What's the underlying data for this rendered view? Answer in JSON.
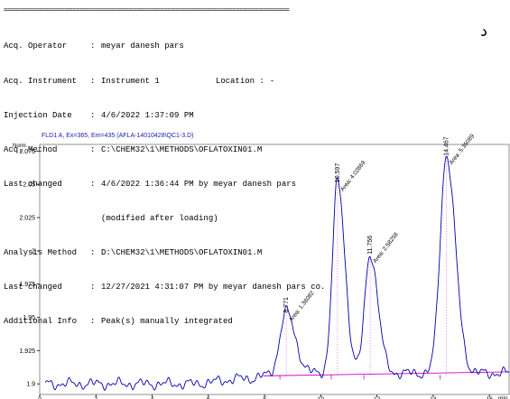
{
  "separator": "===========================================================================",
  "header": {
    "rows": [
      {
        "label": "Acq. Operator",
        "value": "meyar danesh pars"
      },
      {
        "label": "Acq. Instrument",
        "value": "Instrument 1"
      },
      {
        "label": "Injection Date",
        "value": "4/6/2022 1:37:09 PM"
      },
      {
        "label": "Acq. Method",
        "value": "C:\\CHEM32\\1\\METHODS\\OFLATOXIN01.M"
      },
      {
        "label": "Last changed",
        "value": "4/6/2022 1:36:44 PM by meyar danesh pars"
      },
      {
        "label": "",
        "value": "(modified after loading)"
      },
      {
        "label": "Analysis Method",
        "value": "D:\\CHEM32\\1\\METHODS\\OFLATOXIN01.M"
      },
      {
        "label": "Last changed",
        "value": "12/27/2021 4:31:07 PM by meyar danesh pars co."
      },
      {
        "label": "Additional Info",
        "value": "Peak(s) manually integrated"
      }
    ],
    "location_label": "Location :",
    "location_value": "-"
  },
  "margin_mark": "د",
  "chart_data": {
    "type": "line",
    "title": "FLD1 A, Ex=365, Em=435 (AFLA-14010428\\QC1-3.D)",
    "ylabel": "Norm.",
    "xlabel": "min",
    "xlim": [
      0,
      16.7
    ],
    "ylim": [
      1.892,
      2.08
    ],
    "xticks": [
      "0",
      "2",
      "4",
      "6",
      "8",
      "10",
      "12",
      "14",
      "16"
    ],
    "yticks": [
      "1.9",
      "1.925",
      "1.95",
      "1.975",
      "2",
      "2.025",
      "2.05",
      "2.075"
    ],
    "baseline": 1.906,
    "noise_level": 1.9,
    "peaks": [
      {
        "rt": "8.771",
        "rt_value": 8.771,
        "height": 1.952,
        "area": "Area: 1.36082",
        "width": 0.22
      },
      {
        "rt": "10.597",
        "rt_value": 10.597,
        "height": 2.05,
        "area": "Area: 4.02869",
        "width": 0.18
      },
      {
        "rt": "11.756",
        "rt_value": 11.756,
        "height": 1.996,
        "area": "Area: 2.58258",
        "width": 0.19
      },
      {
        "rt": "14.467",
        "rt_value": 14.467,
        "height": 2.07,
        "area": "Area: 5.35089",
        "width": 0.22
      }
    ],
    "series_color": "#0000aa",
    "baseline_color": "#cc00cc"
  }
}
